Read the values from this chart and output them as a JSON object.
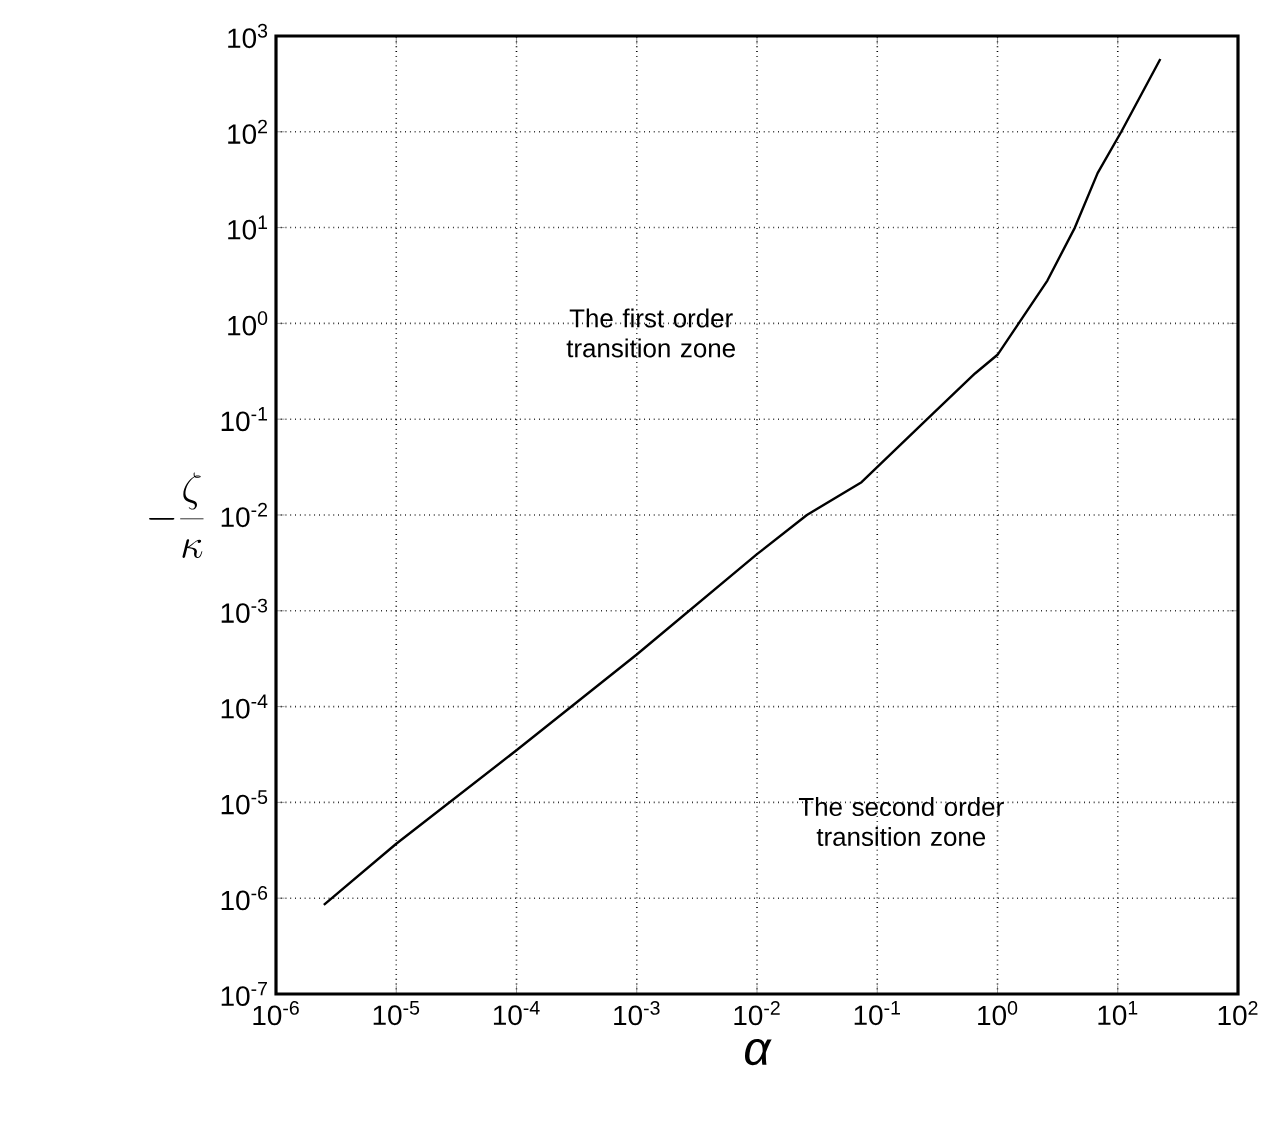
{
  "chart_data": {
    "type": "line",
    "xlabel": "α",
    "ylabel": "-\\frac{\\zeta}{\\kappa}",
    "log": "xy",
    "grid": true,
    "xlim": [
      1e-06,
      100
    ],
    "ylim": [
      1e-07,
      1000
    ],
    "xticks": [
      {
        "value": 1e-06,
        "label": "10$^{-6}$"
      },
      {
        "value": 1e-05,
        "label": "10$^{-5}$"
      },
      {
        "value": 0.0001,
        "label": "10$^{-4}$"
      },
      {
        "value": 0.001,
        "label": "10$^{-3}$"
      },
      {
        "value": 0.01,
        "label": "10$^{-2}$"
      },
      {
        "value": 0.1,
        "label": "10$^{-1}$"
      },
      {
        "value": 1,
        "label": "10$^{0}$"
      },
      {
        "value": 10,
        "label": "10$^{1}$"
      },
      {
        "value": 100,
        "label": "10$^{2}$"
      }
    ],
    "yticks": [
      {
        "value": 1e-07,
        "label": "10$^{-7}$"
      },
      {
        "value": 1e-06,
        "label": "10$^{-6}$"
      },
      {
        "value": 1e-05,
        "label": "10$^{-5}$"
      },
      {
        "value": 0.0001,
        "label": "10$^{-4}$"
      },
      {
        "value": 0.001,
        "label": "10$^{-3}$"
      },
      {
        "value": 0.01,
        "label": "10$^{-2}$"
      },
      {
        "value": 0.1,
        "label": "10$^{-1}$"
      },
      {
        "value": 1,
        "label": "10$^{0}$"
      },
      {
        "value": 10,
        "label": "10$^{1}$"
      },
      {
        "value": 100,
        "label": "10$^{2}$"
      },
      {
        "value": 1000,
        "label": "10$^{3}$"
      }
    ],
    "x": [
      2.5e-06,
      1e-05,
      0.0001,
      0.001,
      0.01,
      0.026,
      0.074,
      0.26,
      0.65,
      1,
      1.5,
      2.6,
      4.4,
      6.8,
      10.7,
      22.6
    ],
    "series": [
      {
        "color": "#000000",
        "values": [
          8.5e-07,
          3.7e-06,
          3.5e-05,
          0.00035,
          0.0039,
          0.01,
          0.022,
          0.1,
          0.3,
          0.47,
          1,
          2.8,
          10,
          37,
          100,
          575
        ]
      }
    ],
    "annotations": [
      "The first order transition zone",
      "The second order transition zone"
    ]
  }
}
